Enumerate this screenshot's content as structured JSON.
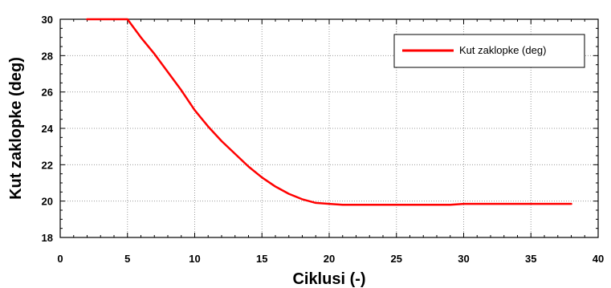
{
  "chart_data": {
    "type": "line",
    "xlabel": "Ciklusi (-)",
    "ylabel": "Kut zaklopke (deg)",
    "xlim": [
      0,
      40
    ],
    "ylim": [
      18,
      30
    ],
    "xticks": [
      0,
      5,
      10,
      15,
      20,
      25,
      30,
      35,
      40
    ],
    "yticks": [
      18,
      20,
      22,
      24,
      26,
      28,
      30
    ],
    "grid": true,
    "legend_position": "top-right",
    "series": [
      {
        "name": "Kut zaklopke (deg)",
        "color": "#ff0000",
        "x": [
          2,
          3,
          4,
          5,
          6,
          7,
          8,
          9,
          10,
          11,
          12,
          13,
          14,
          15,
          16,
          17,
          18,
          19,
          20,
          21,
          22,
          23,
          24,
          25,
          26,
          27,
          28,
          29,
          30,
          31,
          32,
          33,
          34,
          35,
          36,
          37,
          38
        ],
        "y": [
          30,
          30,
          30,
          30,
          29.0,
          28.1,
          27.1,
          26.1,
          25.0,
          24.1,
          23.3,
          22.6,
          21.9,
          21.3,
          20.8,
          20.4,
          20.1,
          19.9,
          19.85,
          19.8,
          19.8,
          19.8,
          19.8,
          19.8,
          19.8,
          19.8,
          19.8,
          19.8,
          19.85,
          19.85,
          19.85,
          19.85,
          19.85,
          19.85,
          19.85,
          19.85,
          19.85
        ]
      }
    ]
  }
}
